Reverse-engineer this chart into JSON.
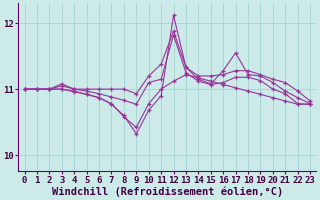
{
  "bg_color": "#cceae8",
  "grid_color": "#aad8d5",
  "line_color": "#993399",
  "xlabel": "Windchill (Refroidissement éolien,°C)",
  "xlabel_fontsize": 7.5,
  "tick_fontsize": 6.5,
  "ylim": [
    9.75,
    12.3
  ],
  "xlim": [
    -0.5,
    23.5
  ],
  "yticks": [
    10,
    11,
    12
  ],
  "xticks": [
    0,
    1,
    2,
    3,
    4,
    5,
    6,
    7,
    8,
    9,
    10,
    11,
    12,
    13,
    14,
    15,
    16,
    17,
    18,
    19,
    20,
    21,
    22,
    23
  ],
  "series": [
    [
      11.0,
      11.0,
      11.0,
      11.08,
      11.0,
      11.0,
      11.0,
      11.0,
      11.0,
      10.93,
      11.2,
      11.38,
      11.88,
      11.33,
      11.2,
      11.2,
      11.22,
      11.28,
      11.28,
      11.22,
      11.15,
      11.1,
      10.97,
      10.82
    ],
    [
      11.0,
      11.0,
      11.0,
      11.05,
      11.0,
      10.97,
      10.93,
      10.88,
      10.83,
      10.77,
      11.1,
      11.15,
      11.82,
      11.25,
      11.12,
      11.07,
      11.1,
      11.18,
      11.18,
      11.13,
      11.0,
      10.93,
      10.78,
      10.77
    ],
    [
      11.0,
      11.0,
      11.0,
      11.0,
      10.96,
      10.92,
      10.87,
      10.78,
      10.58,
      10.42,
      10.78,
      11.0,
      11.12,
      11.22,
      11.17,
      11.12,
      11.07,
      11.02,
      10.97,
      10.92,
      10.87,
      10.82,
      10.77,
      10.77
    ],
    [
      11.0,
      11.0,
      11.0,
      11.0,
      10.97,
      10.92,
      10.87,
      10.77,
      10.6,
      10.32,
      10.68,
      10.9,
      12.12,
      11.33,
      11.15,
      11.08,
      11.28,
      11.55,
      11.22,
      11.2,
      11.1,
      10.97,
      10.87,
      10.78
    ]
  ]
}
